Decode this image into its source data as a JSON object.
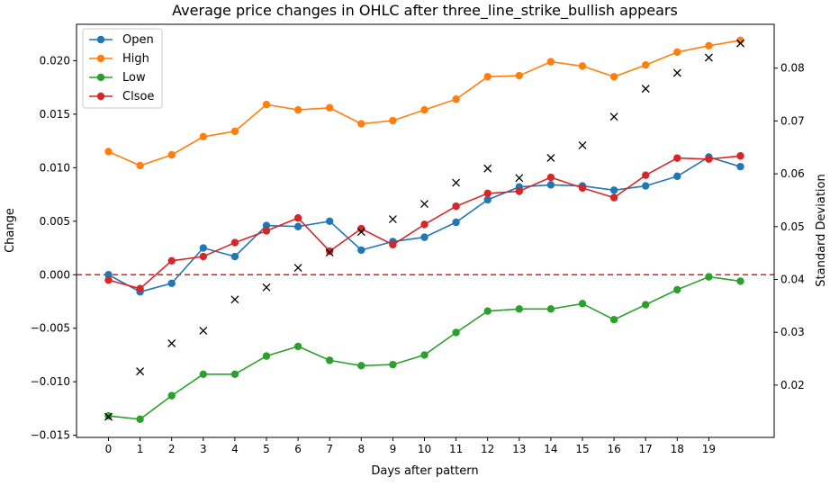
{
  "chart_data": {
    "type": "line",
    "title": "Average price changes in OHLC after three_line_strike_bullish appears",
    "xlabel": "Days after pattern",
    "ylabel": "Change",
    "y2label": "Standard Deviation",
    "x": [
      0,
      1,
      2,
      3,
      4,
      5,
      6,
      7,
      8,
      9,
      10,
      11,
      12,
      13,
      14,
      15,
      16,
      17,
      18,
      19,
      20
    ],
    "x_tick_labels": [
      "0",
      "1",
      "2",
      "3",
      "4",
      "5",
      "6",
      "7",
      "8",
      "9",
      "10",
      "11",
      "12",
      "13",
      "14",
      "15",
      "16",
      "17",
      "18",
      "19"
    ],
    "ylim": [
      -0.0152,
      0.0234
    ],
    "y_ticks": [
      "−0.015",
      "−0.010",
      "−0.005",
      "0.000",
      "0.005",
      "0.010",
      "0.015",
      "0.020"
    ],
    "y_tick_values": [
      -0.015,
      -0.01,
      -0.005,
      0,
      0.005,
      0.01,
      0.015,
      0.02
    ],
    "y2lim": [
      0.0101,
      0.0883
    ],
    "y2_ticks": [
      "0.02",
      "0.03",
      "0.04",
      "0.05",
      "0.06",
      "0.07",
      "0.08"
    ],
    "y2_tick_values": [
      0.02,
      0.03,
      0.04,
      0.05,
      0.06,
      0.07,
      0.08
    ],
    "grid": false,
    "legend_position": "top-left",
    "reference_line": {
      "y": 0,
      "style": "dashed",
      "color": "#e41a1c"
    },
    "series": [
      {
        "name": "Open",
        "color": "#1f77b4",
        "marker": "circle",
        "values": [
          0.0,
          -0.0016,
          -0.0008,
          0.0025,
          0.0017,
          0.0046,
          0.0045,
          0.005,
          0.0023,
          0.0031,
          0.0035,
          0.0049,
          0.007,
          0.0082,
          0.0084,
          0.0083,
          0.0079,
          0.0083,
          0.0092,
          0.011,
          0.0101
        ]
      },
      {
        "name": "High",
        "color": "#ff7f0e",
        "marker": "circle",
        "values": [
          0.0115,
          0.0102,
          0.0112,
          0.0129,
          0.0134,
          0.0159,
          0.0154,
          0.0156,
          0.0141,
          0.0144,
          0.0154,
          0.0164,
          0.0185,
          0.0186,
          0.0199,
          0.0195,
          0.0185,
          0.0196,
          0.0208,
          0.0214,
          0.0219
        ]
      },
      {
        "name": "Low",
        "color": "#2ca02c",
        "marker": "circle",
        "values": [
          -0.0132,
          -0.0135,
          -0.0113,
          -0.0093,
          -0.0093,
          -0.0076,
          -0.0067,
          -0.008,
          -0.0085,
          -0.0084,
          -0.0075,
          -0.0054,
          -0.0034,
          -0.0032,
          -0.0032,
          -0.0027,
          -0.0042,
          -0.0028,
          -0.0014,
          -0.0002,
          -0.0006
        ]
      },
      {
        "name": "Clsoe",
        "color": "#d62728",
        "marker": "circle",
        "values": [
          -0.0005,
          -0.0013,
          0.0013,
          0.0017,
          0.003,
          0.0041,
          0.0053,
          0.0022,
          0.0043,
          0.0028,
          0.0047,
          0.0064,
          0.0076,
          0.0078,
          0.0091,
          0.0081,
          0.0072,
          0.0093,
          0.0109,
          0.0108,
          0.0111
        ]
      },
      {
        "axis": "right",
        "color": "#000000",
        "marker": "x",
        "line": false,
        "values": [
          0.014,
          0.0226,
          0.0279,
          0.0303,
          0.0362,
          0.0385,
          0.0422,
          0.0451,
          0.049,
          0.0514,
          0.0543,
          0.0583,
          0.061,
          0.0592,
          0.063,
          0.0654,
          0.0708,
          0.0761,
          0.0791,
          0.082,
          0.0847
        ]
      }
    ]
  }
}
